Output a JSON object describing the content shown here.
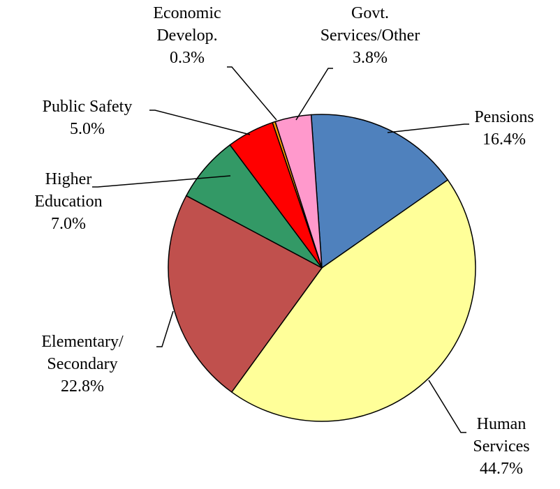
{
  "chart_data": {
    "type": "pie",
    "categories": [
      "Pensions",
      "Human\nServices",
      "Elementary/\nSecondary",
      "Higher\nEducation",
      "Public Safety",
      "Economic\nDevelop.",
      "Govt.\nServices/Other"
    ],
    "values": [
      16.4,
      44.7,
      22.8,
      7.0,
      5.0,
      0.3,
      3.8
    ],
    "value_labels": [
      "16.4%",
      "44.7%",
      "22.8%",
      "7.0%",
      "5.0%",
      "0.3%",
      "3.8%"
    ],
    "colors": [
      "#4f81bd",
      "#ffff99",
      "#c0504d",
      "#339966",
      "#ff0000",
      "#ff9900",
      "#ff99cc"
    ]
  }
}
